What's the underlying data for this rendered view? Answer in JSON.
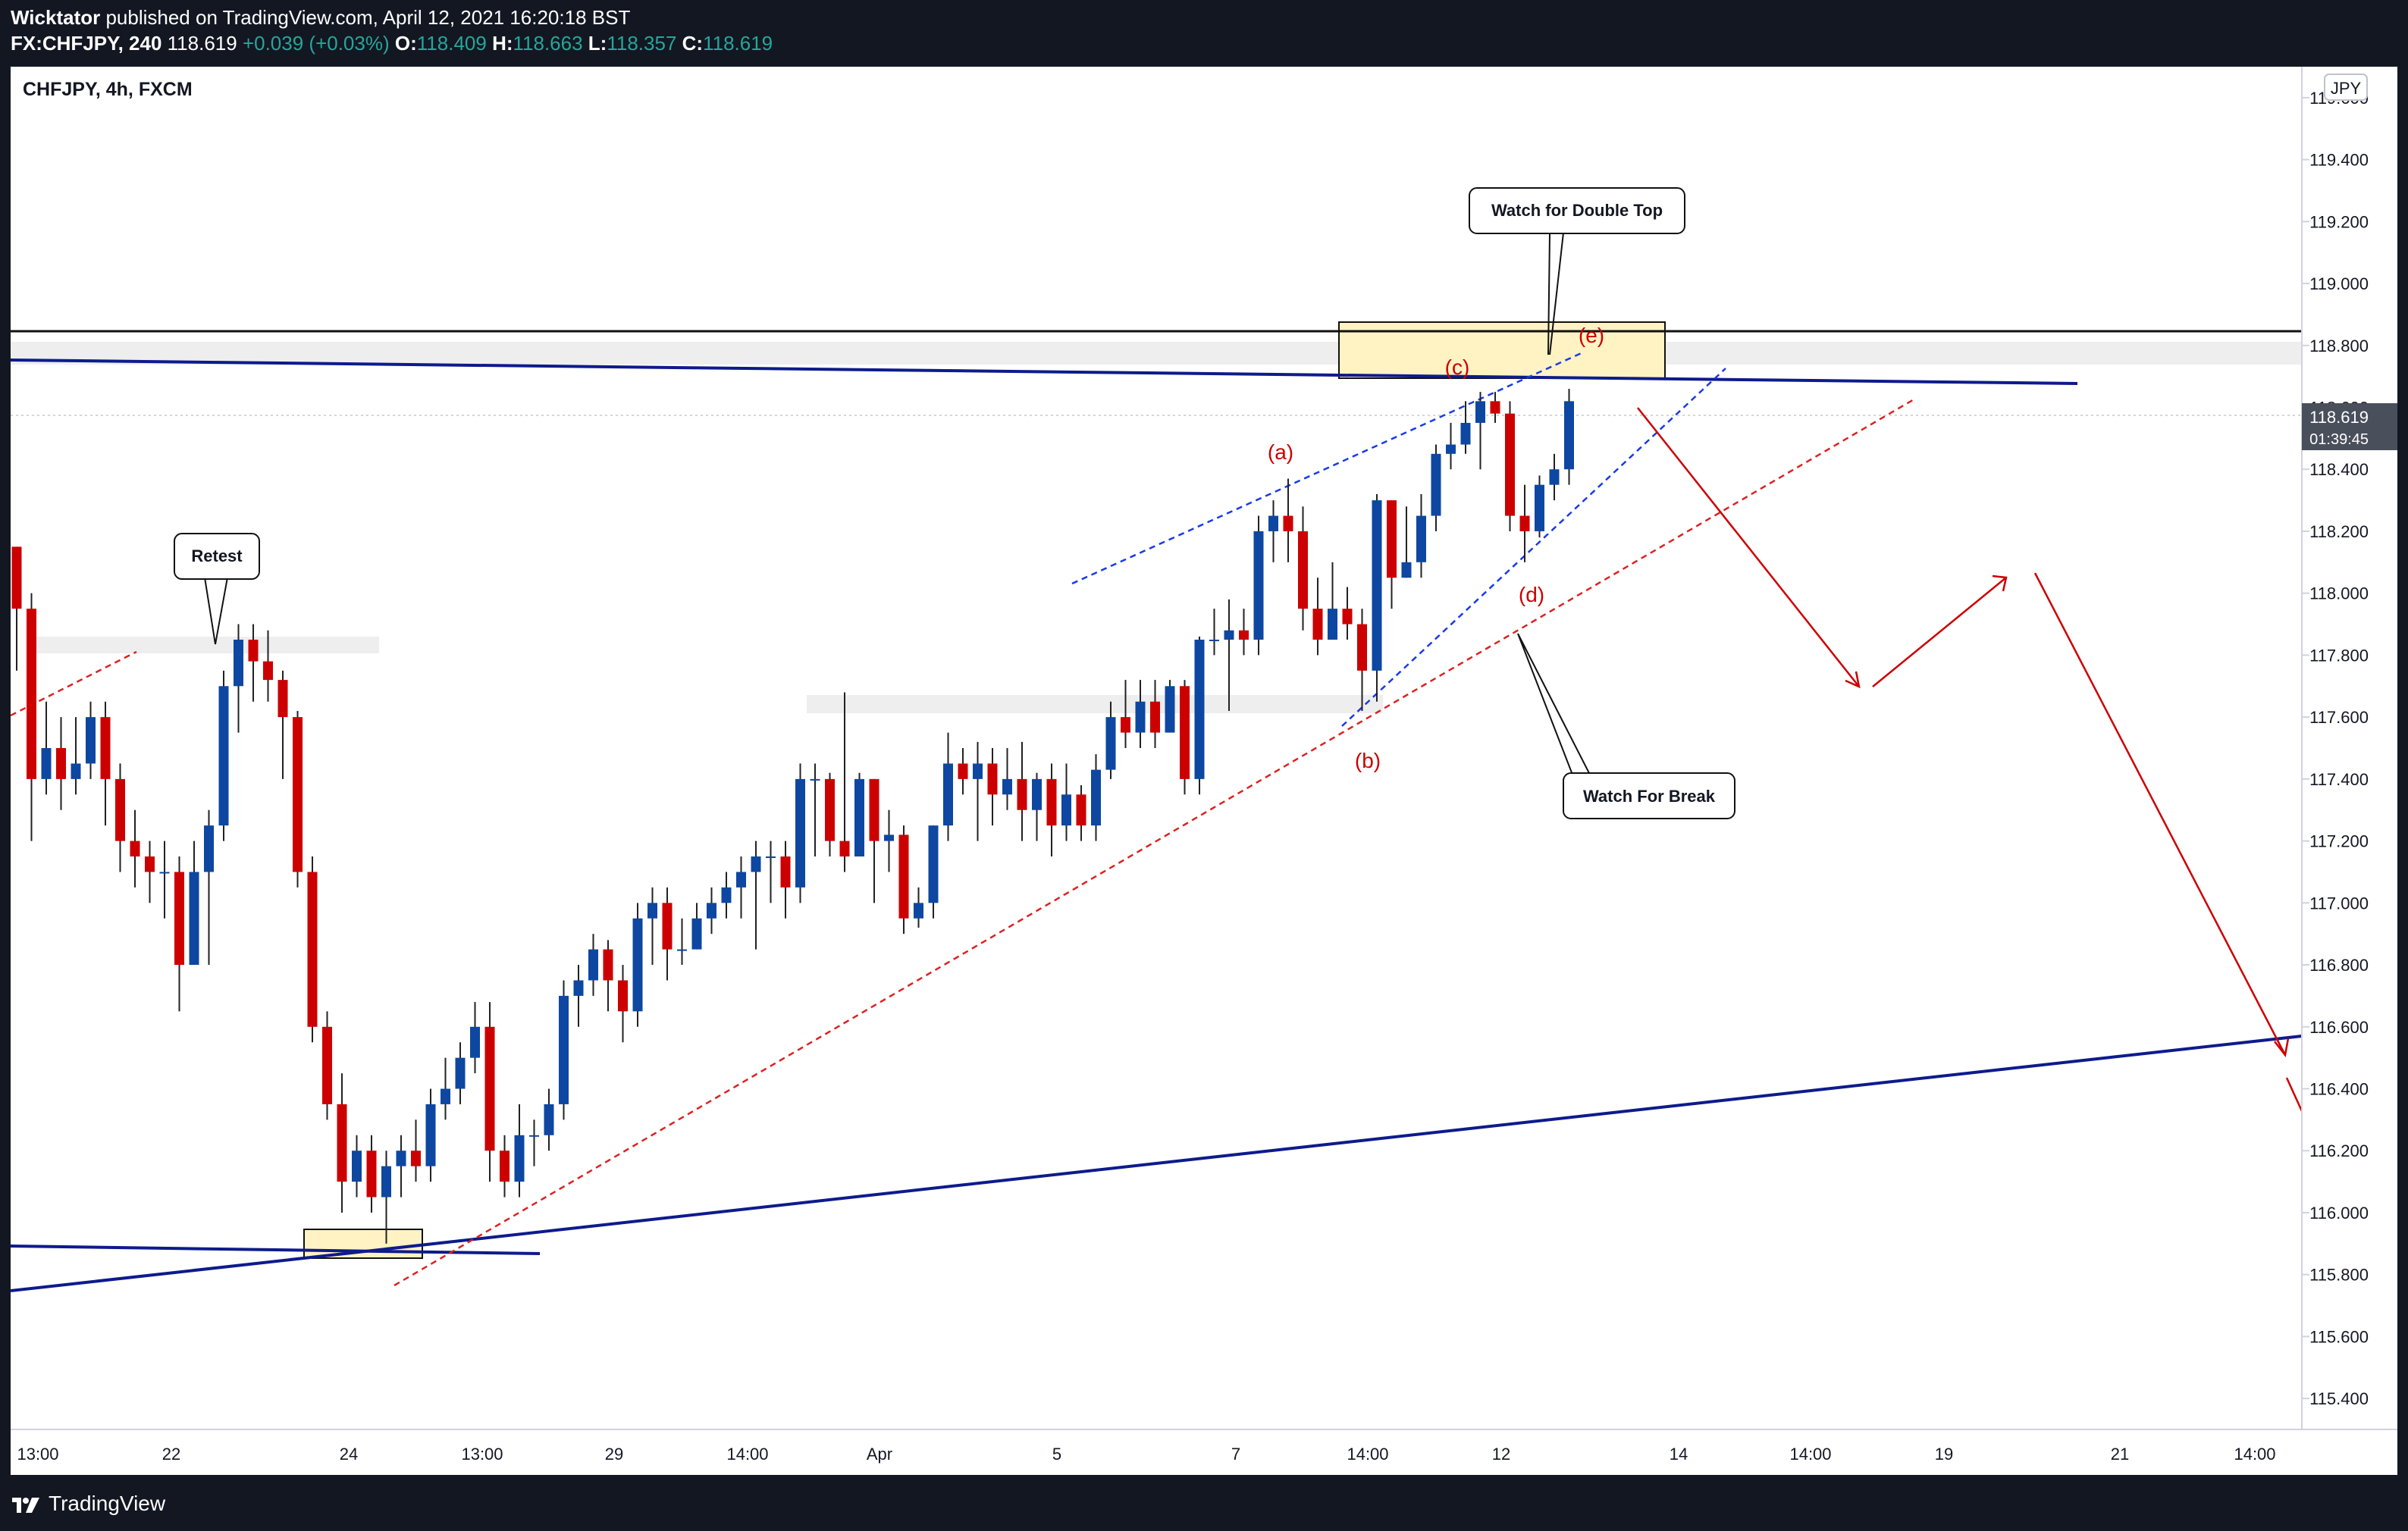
{
  "header": {
    "author": "Wicktator",
    "published_text": " published on TradingView.com, April 12, 2021 16:20:18 BST",
    "symbol": "FX:CHFJPY, 240",
    "last": "118.619",
    "change": "+0.039 (+0.03%)",
    "o_label": "O:",
    "o_value": "118.409",
    "h_label": "H:",
    "h_value": "118.663",
    "l_label": "L:",
    "l_value": "118.357",
    "c_label": "C:",
    "c_value": "118.619"
  },
  "chart_title": "CHFJPY, 4h, FXCM",
  "footer": {
    "brand": "TradingView"
  },
  "colors": {
    "up": "#0d47a1",
    "down": "#cc0000",
    "accent_line": "#0d1b8c",
    "annotation_red": "#cc0000",
    "price_tag_bg": "#4a4f5c"
  },
  "chart_data": {
    "type": "candlestick",
    "y_axis_currency": "JPY",
    "ylim": [
      115.3,
      119.7
    ],
    "y_ticks": [
      "119.600",
      "119.400",
      "119.200",
      "119.000",
      "118.800",
      "118.600",
      "118.400",
      "118.200",
      "118.000",
      "117.800",
      "117.600",
      "117.400",
      "117.200",
      "117.000",
      "116.800",
      "116.600",
      "116.400",
      "116.200",
      "116.000",
      "115.800",
      "115.600",
      "115.400"
    ],
    "x_ticks": [
      "13:00",
      "22",
      "24",
      "13:00",
      "29",
      "14:00",
      "Apr",
      "5",
      "7",
      "14:00",
      "12",
      "14",
      "14:00",
      "19",
      "21",
      "14:00"
    ],
    "last_price": "118.619",
    "countdown": "01:39:45",
    "candles": [
      [
        118.15,
        117.95,
        118.15,
        117.75
      ],
      [
        117.95,
        117.4,
        118.0,
        117.2
      ],
      [
        117.4,
        117.5,
        117.65,
        117.35
      ],
      [
        117.5,
        117.4,
        117.6,
        117.3
      ],
      [
        117.4,
        117.45,
        117.6,
        117.35
      ],
      [
        117.45,
        117.6,
        117.65,
        117.4
      ],
      [
        117.6,
        117.4,
        117.65,
        117.25
      ],
      [
        117.4,
        117.2,
        117.45,
        117.1
      ],
      [
        117.2,
        117.15,
        117.3,
        117.05
      ],
      [
        117.15,
        117.1,
        117.2,
        117.0
      ],
      [
        117.1,
        117.1,
        117.2,
        116.95
      ],
      [
        117.1,
        116.8,
        117.15,
        116.65
      ],
      [
        116.8,
        117.1,
        117.2,
        116.8
      ],
      [
        117.1,
        117.25,
        117.3,
        116.8
      ],
      [
        117.25,
        117.7,
        117.75,
        117.2
      ],
      [
        117.7,
        117.85,
        117.9,
        117.55
      ],
      [
        117.85,
        117.78,
        117.9,
        117.65
      ],
      [
        117.78,
        117.72,
        117.88,
        117.65
      ],
      [
        117.72,
        117.6,
        117.75,
        117.4
      ],
      [
        117.6,
        117.1,
        117.62,
        117.05
      ],
      [
        117.1,
        116.6,
        117.15,
        116.55
      ],
      [
        116.6,
        116.35,
        116.65,
        116.3
      ],
      [
        116.35,
        116.1,
        116.45,
        116.0
      ],
      [
        116.1,
        116.2,
        116.25,
        116.05
      ],
      [
        116.2,
        116.05,
        116.25,
        116.0
      ],
      [
        116.05,
        116.15,
        116.2,
        115.9
      ],
      [
        116.15,
        116.2,
        116.25,
        116.05
      ],
      [
        116.2,
        116.15,
        116.3,
        116.1
      ],
      [
        116.15,
        116.35,
        116.4,
        116.1
      ],
      [
        116.35,
        116.4,
        116.5,
        116.3
      ],
      [
        116.4,
        116.5,
        116.55,
        116.35
      ],
      [
        116.5,
        116.6,
        116.68,
        116.45
      ],
      [
        116.6,
        116.2,
        116.68,
        116.1
      ],
      [
        116.2,
        116.1,
        116.25,
        116.05
      ],
      [
        116.1,
        116.25,
        116.35,
        116.05
      ],
      [
        116.25,
        116.25,
        116.3,
        116.15
      ],
      [
        116.25,
        116.35,
        116.4,
        116.2
      ],
      [
        116.35,
        116.7,
        116.75,
        116.3
      ],
      [
        116.7,
        116.75,
        116.8,
        116.6
      ],
      [
        116.75,
        116.85,
        116.9,
        116.7
      ],
      [
        116.85,
        116.75,
        116.88,
        116.65
      ],
      [
        116.75,
        116.65,
        116.8,
        116.55
      ],
      [
        116.65,
        116.95,
        117.0,
        116.6
      ],
      [
        116.95,
        117.0,
        117.05,
        116.8
      ],
      [
        117.0,
        116.85,
        117.05,
        116.75
      ],
      [
        116.85,
        116.85,
        116.95,
        116.8
      ],
      [
        116.85,
        116.95,
        117.0,
        116.85
      ],
      [
        116.95,
        117.0,
        117.05,
        116.9
      ],
      [
        117.0,
        117.05,
        117.1,
        116.95
      ],
      [
        117.05,
        117.1,
        117.15,
        116.95
      ],
      [
        117.1,
        117.15,
        117.2,
        116.85
      ],
      [
        117.15,
        117.15,
        117.2,
        117.0
      ],
      [
        117.15,
        117.05,
        117.2,
        116.95
      ],
      [
        117.05,
        117.4,
        117.45,
        117.0
      ],
      [
        117.4,
        117.4,
        117.45,
        117.15
      ],
      [
        117.4,
        117.2,
        117.42,
        117.15
      ],
      [
        117.2,
        117.15,
        117.68,
        117.1
      ],
      [
        117.15,
        117.4,
        117.42,
        117.15
      ],
      [
        117.4,
        117.2,
        117.4,
        117.0
      ],
      [
        117.2,
        117.22,
        117.3,
        117.1
      ],
      [
        117.22,
        116.95,
        117.25,
        116.9
      ],
      [
        116.95,
        117.0,
        117.05,
        116.92
      ],
      [
        117.0,
        117.25,
        117.25,
        116.95
      ],
      [
        117.25,
        117.45,
        117.55,
        117.2
      ],
      [
        117.45,
        117.4,
        117.5,
        117.35
      ],
      [
        117.4,
        117.45,
        117.52,
        117.2
      ],
      [
        117.45,
        117.35,
        117.5,
        117.25
      ],
      [
        117.35,
        117.4,
        117.5,
        117.3
      ],
      [
        117.4,
        117.3,
        117.52,
        117.2
      ],
      [
        117.3,
        117.4,
        117.42,
        117.2
      ],
      [
        117.4,
        117.25,
        117.45,
        117.15
      ],
      [
        117.25,
        117.35,
        117.45,
        117.2
      ],
      [
        117.35,
        117.25,
        117.38,
        117.2
      ],
      [
        117.25,
        117.43,
        117.48,
        117.2
      ],
      [
        117.43,
        117.6,
        117.65,
        117.4
      ],
      [
        117.6,
        117.55,
        117.72,
        117.5
      ],
      [
        117.55,
        117.65,
        117.72,
        117.5
      ],
      [
        117.65,
        117.55,
        117.72,
        117.5
      ],
      [
        117.55,
        117.7,
        117.72,
        117.55
      ],
      [
        117.7,
        117.4,
        117.72,
        117.35
      ],
      [
        117.4,
        117.85,
        117.86,
        117.35
      ],
      [
        117.85,
        117.85,
        117.95,
        117.8
      ],
      [
        117.85,
        117.88,
        117.98,
        117.62
      ],
      [
        117.88,
        117.85,
        117.95,
        117.8
      ],
      [
        117.85,
        118.2,
        118.25,
        117.8
      ],
      [
        118.2,
        118.25,
        118.3,
        118.1
      ],
      [
        118.25,
        118.2,
        118.37,
        118.1
      ],
      [
        118.2,
        117.95,
        118.28,
        117.88
      ],
      [
        117.95,
        117.85,
        118.05,
        117.8
      ],
      [
        117.85,
        117.95,
        118.1,
        117.85
      ],
      [
        117.95,
        117.9,
        118.02,
        117.85
      ],
      [
        117.9,
        117.75,
        117.95,
        117.62
      ],
      [
        117.75,
        118.3,
        118.32,
        117.65
      ],
      [
        118.3,
        118.05,
        118.3,
        117.95
      ],
      [
        118.05,
        118.1,
        118.28,
        118.05
      ],
      [
        118.1,
        118.25,
        118.32,
        118.05
      ],
      [
        118.25,
        118.45,
        118.48,
        118.2
      ],
      [
        118.45,
        118.48,
        118.55,
        118.4
      ],
      [
        118.48,
        118.55,
        118.62,
        118.45
      ],
      [
        118.55,
        118.62,
        118.65,
        118.4
      ],
      [
        118.62,
        118.58,
        118.65,
        118.55
      ],
      [
        118.58,
        118.25,
        118.62,
        118.2
      ],
      [
        118.25,
        118.2,
        118.35,
        118.1
      ],
      [
        118.2,
        118.35,
        118.38,
        118.18
      ],
      [
        118.35,
        118.4,
        118.45,
        118.3
      ],
      [
        118.4,
        118.62,
        118.66,
        118.35
      ]
    ],
    "annotations": {
      "callout_double_top": "Watch for Double Top",
      "callout_retest": "Retest",
      "callout_break": "Watch For Break",
      "wave_a": "(a)",
      "wave_b": "(b)",
      "wave_c": "(c)",
      "wave_d": "(d)",
      "wave_e": "(e)"
    }
  }
}
